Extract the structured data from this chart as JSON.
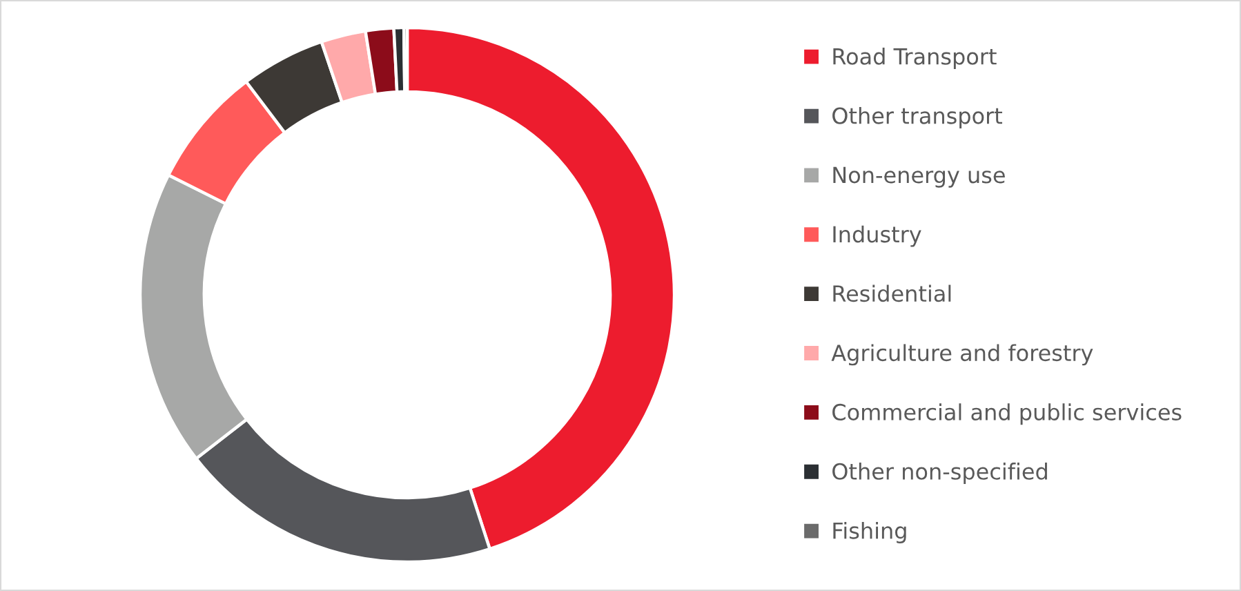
{
  "chart_data": {
    "type": "donut",
    "categories": [
      "Road Transport",
      "Other transport",
      "Non-energy use",
      "Industry",
      "Residential",
      "Agriculture and forestry",
      "Commercial and public services",
      "Other non-specified",
      "Fishing"
    ],
    "values": [
      45.0,
      19.5,
      17.9,
      7.3,
      5.1,
      2.7,
      1.7,
      0.6,
      0.2
    ],
    "colors": [
      "#ed1c2e",
      "#55565a",
      "#a7a8a7",
      "#ff5a5a",
      "#3d3935",
      "#ffa9aa",
      "#8c0c1a",
      "#2b2f33",
      "#6b6b6b"
    ],
    "legend": "right"
  }
}
